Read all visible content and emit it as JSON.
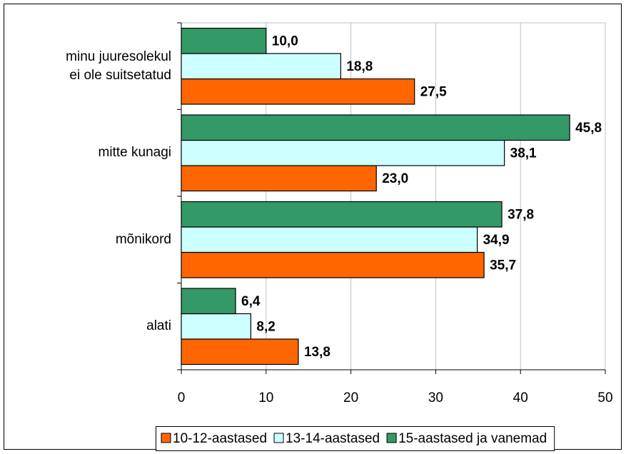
{
  "chart_data": {
    "type": "bar",
    "orientation": "horizontal",
    "categories": [
      "minu juuresolekul\nei ole suitsetatud",
      "mitte kunagi",
      "mõnikord",
      "alati"
    ],
    "series": [
      {
        "name": "10-12-aastased",
        "color": "#ff6600",
        "values": [
          27.5,
          23.0,
          35.7,
          13.8
        ],
        "value_labels": [
          "27,5",
          "23,0",
          "35,7",
          "13,8"
        ]
      },
      {
        "name": "13-14-aastased",
        "color": "#ccffff",
        "values": [
          18.8,
          38.1,
          34.9,
          8.2
        ],
        "value_labels": [
          "18,8",
          "38,1",
          "34,9",
          "8,2"
        ]
      },
      {
        "name": "15-aastased ja vanemad",
        "color": "#339966",
        "values": [
          10.0,
          45.8,
          37.8,
          6.4
        ],
        "value_labels": [
          "10,0",
          "45,8",
          "37,8",
          "6,4"
        ]
      }
    ],
    "xlim": [
      0,
      50
    ],
    "xticks": [
      0,
      10,
      20,
      30,
      40,
      50
    ],
    "grid": true,
    "legend": "bottom"
  }
}
